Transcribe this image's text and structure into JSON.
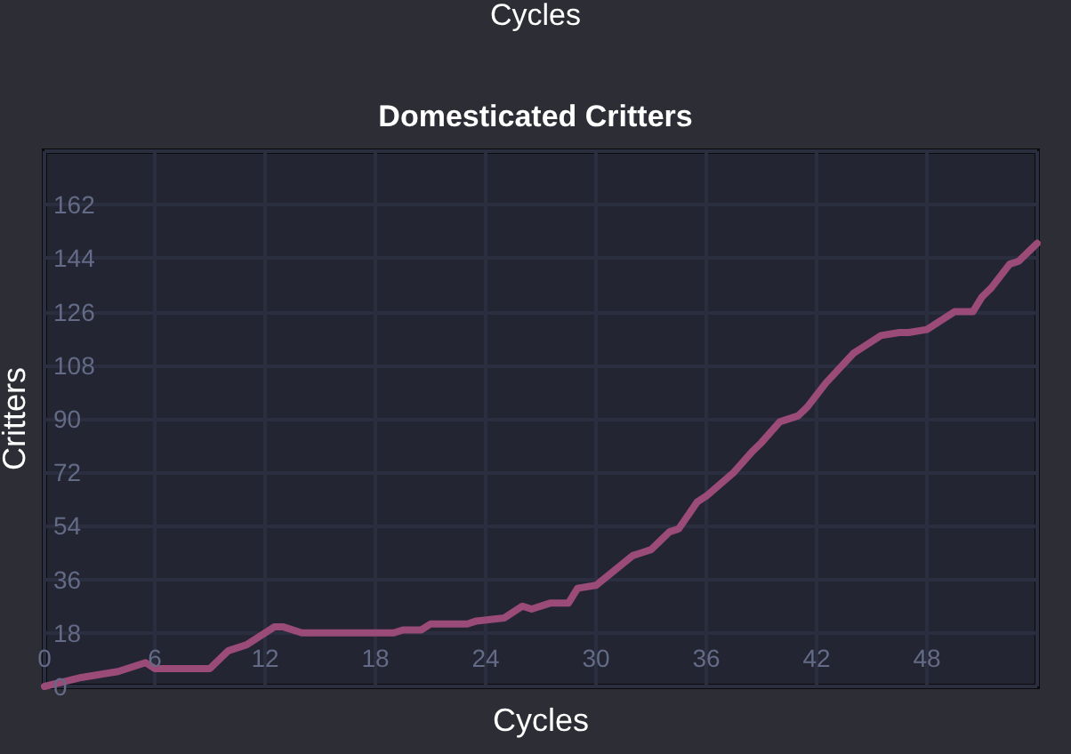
{
  "chart_data": {
    "type": "line",
    "title": "Domesticated Critters",
    "xlabel": "Cycles",
    "ylabel": "Critters",
    "annotations": [
      "Cycles"
    ],
    "x": [
      0,
      2,
      4,
      5.5,
      6,
      9,
      10,
      11,
      12.5,
      13,
      14,
      19,
      19.5,
      20.5,
      21,
      23,
      23.5,
      25,
      26,
      26.5,
      27.5,
      28.5,
      29,
      30,
      31,
      32,
      32.5,
      33,
      34,
      34.5,
      35.5,
      36,
      37.5,
      38.5,
      39,
      40,
      41,
      41.5,
      42.5,
      44,
      44.5,
      45.5,
      46.5,
      47,
      48,
      49.5,
      50.5,
      51,
      51.5,
      52.5,
      53,
      54
    ],
    "series": [
      {
        "color": "#9b4b77",
        "values": [
          0,
          3,
          5,
          8,
          6,
          6,
          12,
          14,
          20,
          20,
          18,
          18,
          19,
          19,
          21,
          21,
          22,
          23,
          27,
          26,
          28,
          28,
          33,
          34,
          39,
          44,
          45,
          46,
          52,
          53,
          62,
          64,
          72,
          79,
          82,
          89,
          91,
          94,
          102,
          112,
          114,
          118,
          119,
          119,
          120,
          126,
          126,
          131,
          134,
          142,
          143,
          149
        ]
      }
    ],
    "xlim": [
      0,
      54
    ],
    "xticks": [
      0,
      6,
      12,
      18,
      24,
      30,
      36,
      42,
      48
    ],
    "ylim": [
      0,
      180
    ],
    "yticks": [
      0,
      18,
      36,
      54,
      72,
      90,
      108,
      126,
      144,
      162
    ],
    "grid": true
  }
}
